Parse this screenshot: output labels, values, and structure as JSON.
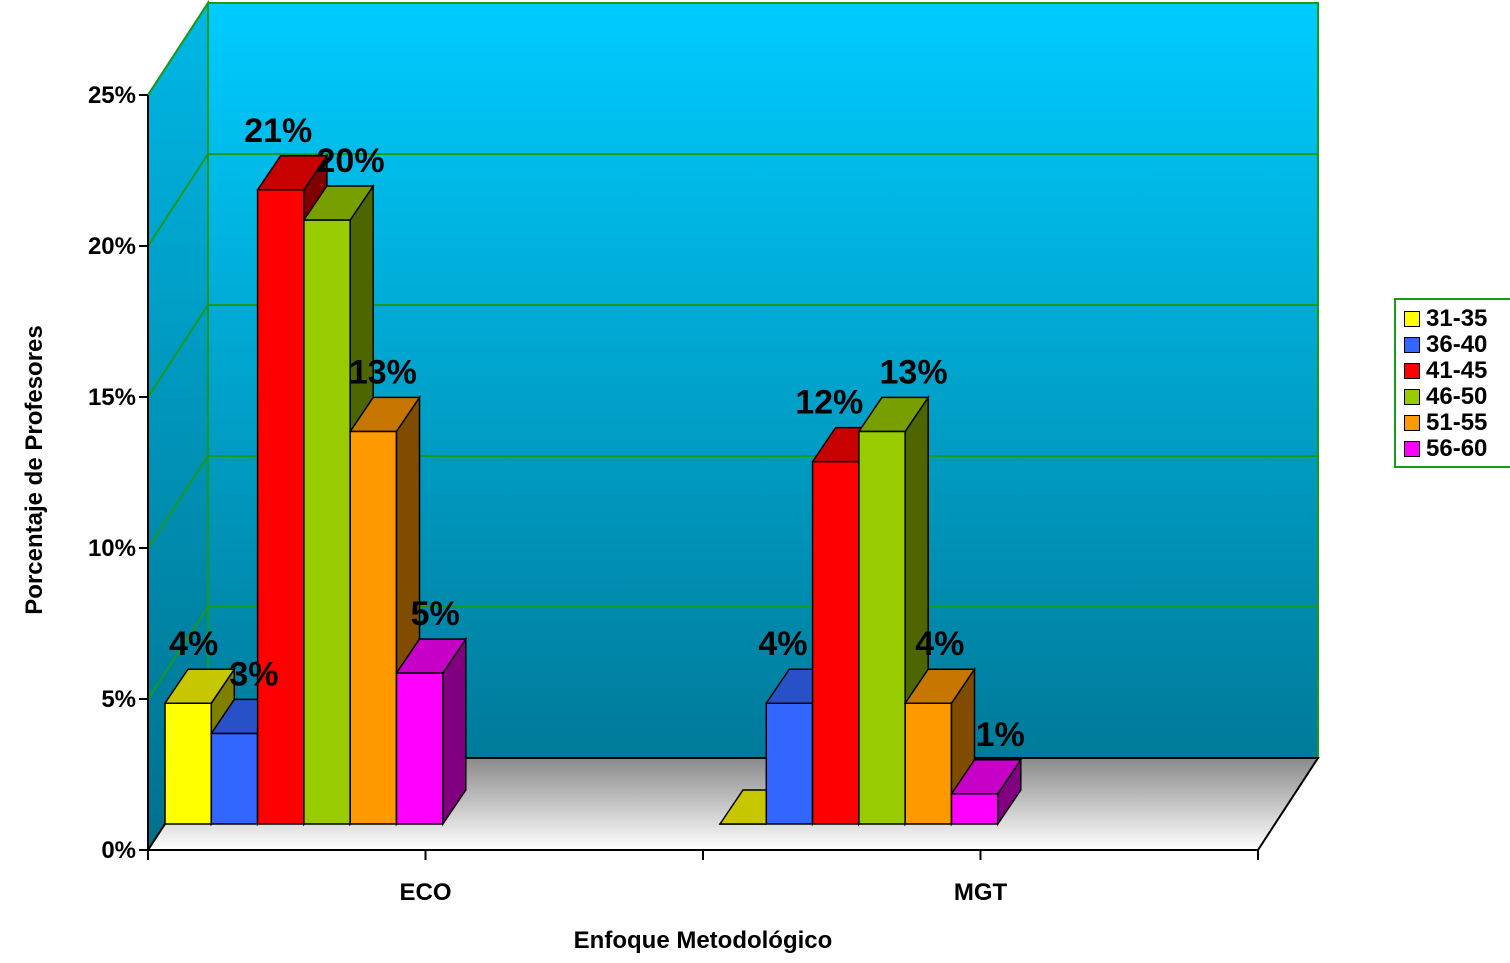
{
  "chart_data": {
    "type": "bar",
    "title": "",
    "xlabel": "Enfoque Metodológico",
    "ylabel": "Porcentaje de Profesores",
    "categories": [
      "ECO",
      "MGT"
    ],
    "ylim": [
      0,
      25
    ],
    "y_ticks": [
      "0%",
      "5%",
      "10%",
      "15%",
      "20%",
      "25%"
    ],
    "grid": true,
    "legend_position": "right",
    "series": [
      {
        "name": "31-35",
        "color": "#ffff00",
        "values": [
          4,
          0
        ],
        "labels": [
          "4%",
          ""
        ]
      },
      {
        "name": "36-40",
        "color": "#3366ff",
        "values": [
          3,
          4
        ],
        "labels": [
          "3%",
          "4%"
        ]
      },
      {
        "name": "41-45",
        "color": "#ff0000",
        "values": [
          21,
          12
        ],
        "labels": [
          "21%",
          "12%"
        ]
      },
      {
        "name": "46-50",
        "color": "#99cc00",
        "values": [
          20,
          13
        ],
        "labels": [
          "20%",
          "13%"
        ]
      },
      {
        "name": "51-55",
        "color": "#ff9900",
        "values": [
          13,
          4
        ],
        "labels": [
          "13%",
          "4%"
        ]
      },
      {
        "name": "56-60",
        "color": "#ff00ff",
        "values": [
          5,
          1
        ],
        "labels": [
          "5%",
          "1%"
        ]
      }
    ]
  }
}
